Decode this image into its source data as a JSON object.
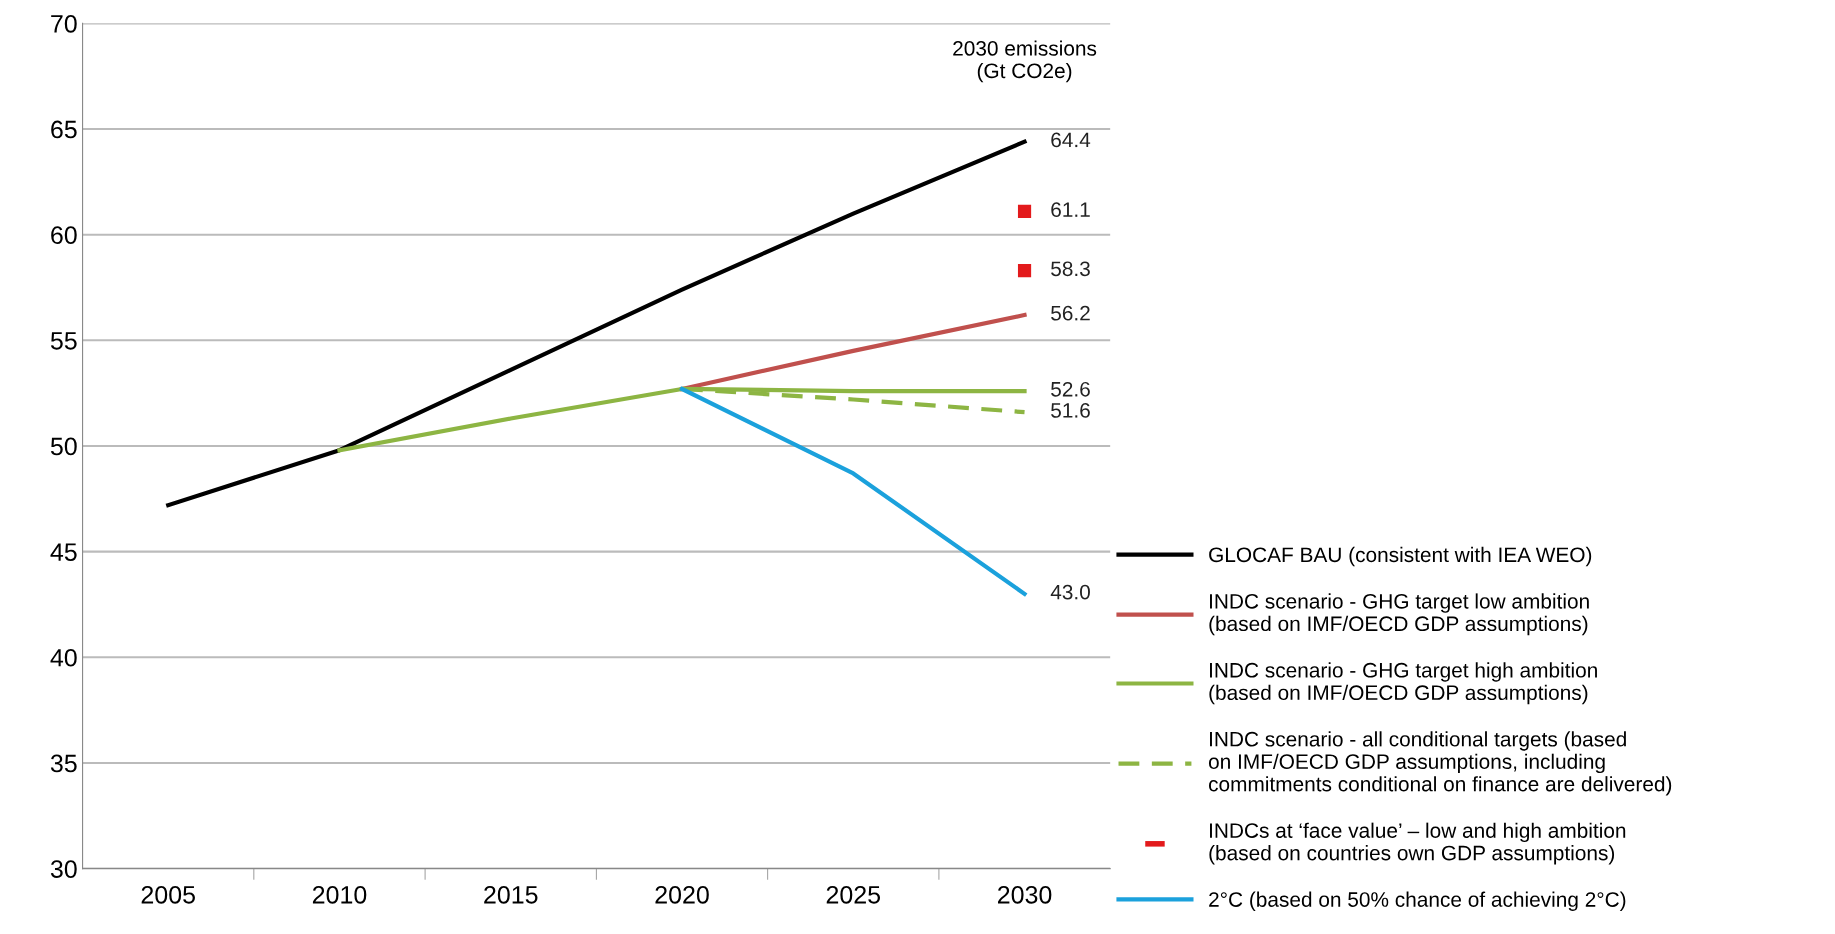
{
  "chart_data": {
    "type": "line",
    "categories": [
      "2005",
      "2010",
      "2015",
      "2020",
      "2025",
      "2030"
    ],
    "ylim": [
      30,
      70
    ],
    "yticks": [
      30,
      35,
      40,
      45,
      50,
      55,
      60,
      65,
      70
    ],
    "grid": "y",
    "legend": "right",
    "annotations": [
      "2030 emissions\n(Gt CO2e)"
    ],
    "series": [
      {
        "name": "GLOCAF BAU (consistent with IEA WEO)",
        "color": "#000000",
        "values": [
          47.2,
          49.8,
          53.6,
          57.4,
          61.0,
          64.4
        ],
        "value_labels": [
          null,
          null,
          null,
          null,
          null,
          "64.4"
        ]
      },
      {
        "name": "INDC scenario - GHG target low ambition\n(based on IMF/OECD GDP assumptions)",
        "color": "#c0504d",
        "values": [
          null,
          null,
          null,
          52.7,
          54.5,
          56.2
        ],
        "value_labels": [
          null,
          null,
          null,
          null,
          null,
          "56.2"
        ]
      },
      {
        "name": "INDC scenario - GHG target high ambition\n(based on IMF/OECD GDP assumptions)",
        "color": "#8db543",
        "values": [
          null,
          49.8,
          51.3,
          52.7,
          52.6,
          52.6
        ],
        "value_labels": [
          null,
          null,
          null,
          null,
          null,
          "52.6"
        ]
      },
      {
        "name": "INDC scenario - all conditional targets (based\non IMF/OECD GDP assumptions, including\ncommitments conditional on finance are delivered)",
        "color": "#8db543",
        "line_style": "dashed",
        "values": [
          null,
          null,
          null,
          52.7,
          52.2,
          51.6
        ],
        "value_labels": [
          null,
          null,
          null,
          null,
          null,
          "51.6"
        ]
      },
      {
        "name": "INDCs at ‘face value’ – low and high ambition\n(based on countries own GDP assumptions)",
        "type": "scatter",
        "color": "#e31a1c",
        "values": [
          null,
          null,
          null,
          null,
          null,
          61.1
        ],
        "value_labels": [
          null,
          null,
          null,
          null,
          null,
          "61.1"
        ]
      },
      {
        "type": "scatter",
        "color": "#e31a1c",
        "values": [
          null,
          null,
          null,
          null,
          null,
          58.3
        ],
        "value_labels": [
          null,
          null,
          null,
          null,
          null,
          "58.3"
        ]
      },
      {
        "name": "2°C (based on 50% chance of achieving 2°C)",
        "color": "#1ba1dc",
        "values": [
          null,
          null,
          null,
          52.7,
          48.7,
          43.0
        ],
        "value_labels": [
          null,
          null,
          null,
          null,
          null,
          "43.0"
        ]
      }
    ]
  }
}
